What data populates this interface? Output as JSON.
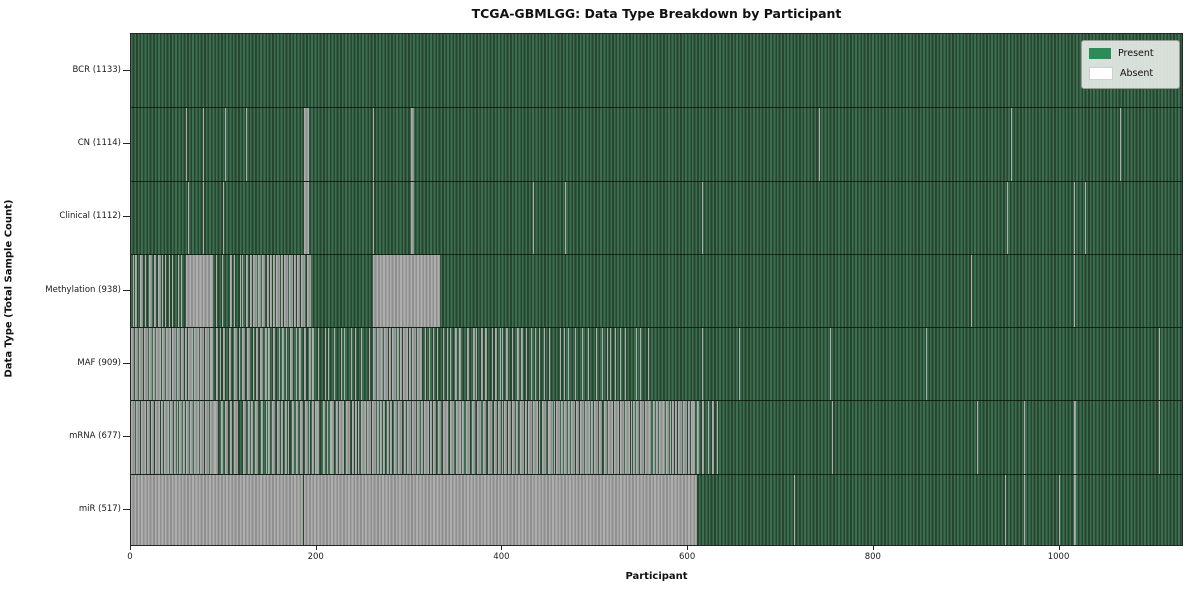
{
  "chart_data": {
    "type": "heatmap",
    "title": "TCGA-GBMLGG: Data Type Breakdown by Participant",
    "xlabel": "Participant",
    "ylabel": "Data Type (Total Sample Count)",
    "x_ticks": [
      0,
      200,
      400,
      600,
      800,
      1000
    ],
    "x_max": 1134,
    "n_participants": 1133,
    "grid": false,
    "legend_position": "upper right",
    "legend": [
      {
        "label": "Present",
        "color": "#2e8b57"
      },
      {
        "label": "Absent",
        "color": "#ffffff"
      }
    ],
    "colors": {
      "present_fill": "#2e8b57",
      "present_stripe_light": "#3c6e51",
      "present_stripe_dark": "#28462f",
      "absent_stripe_light": "#aeaeae",
      "absent_stripe_dark": "#8f8f8f"
    },
    "rows": [
      {
        "name": "BCR",
        "label": "BCR (1133)",
        "total": 1133,
        "absent": []
      },
      {
        "name": "CN",
        "label": "CN (1114)",
        "total": 1114,
        "absent": [
          [
            35,
            36
          ],
          [
            59,
            60
          ],
          [
            78,
            79
          ],
          [
            101,
            102
          ],
          [
            124,
            125
          ],
          [
            186,
            192
          ],
          [
            261,
            262
          ],
          [
            302,
            305
          ],
          [
            524,
            525
          ],
          [
            741,
            742
          ],
          [
            948,
            949
          ],
          [
            1065,
            1066
          ]
        ]
      },
      {
        "name": "Clinical",
        "label": "Clinical (1112)",
        "total": 1112,
        "absent": [
          [
            61,
            62
          ],
          [
            78,
            79
          ],
          [
            99,
            100
          ],
          [
            186,
            192
          ],
          [
            261,
            262
          ],
          [
            302,
            305
          ],
          [
            433,
            434
          ],
          [
            467,
            468
          ],
          [
            524,
            525
          ],
          [
            615,
            616
          ],
          [
            875,
            876
          ],
          [
            943,
            944
          ],
          [
            1016,
            1017
          ],
          [
            1027,
            1028
          ]
        ]
      },
      {
        "name": "Methylation",
        "label": "Methylation (938)",
        "total": 938,
        "absent": [
          {
            "range": [
              2,
              55
            ],
            "density": 0.5
          },
          [
            59,
            86
          ],
          {
            "range": [
              86,
              124
            ],
            "density": 0.26
          },
          {
            "range": [
              124,
              196
            ],
            "density": 0.66
          },
          [
            261,
            333
          ],
          [
            524,
            525
          ],
          [
            905,
            906
          ],
          [
            1016,
            1017
          ]
        ]
      },
      {
        "name": "MAF",
        "label": "MAF (909)",
        "total": 909,
        "absent": [
          {
            "range": [
              0,
              86
            ],
            "density": 0.8
          },
          {
            "range": [
              86,
              196
            ],
            "density": 0.42
          },
          {
            "range": [
              196,
              261
            ],
            "density": 0.06
          },
          {
            "range": [
              261,
              311
            ],
            "density": 0.85
          },
          {
            "range": [
              311,
              440
            ],
            "density": 0.3
          },
          {
            "range": [
              440,
              560
            ],
            "density": 0.15
          },
          [
            580,
            581
          ],
          [
            615,
            616
          ],
          [
            655,
            656
          ],
          [
            753,
            754
          ],
          [
            856,
            857
          ],
          [
            1042,
            1043
          ],
          [
            1107,
            1108
          ]
        ]
      },
      {
        "name": "mRNA",
        "label": "mRNA (677)",
        "total": 677,
        "absent": [
          {
            "range": [
              0,
              90
            ],
            "density": 0.78
          },
          {
            "range": [
              90,
              200
            ],
            "density": 0.6
          },
          {
            "range": [
              200,
              215
            ],
            "density": 0.25
          },
          {
            "range": [
              215,
              450
            ],
            "density": 0.72
          },
          {
            "range": [
              450,
              605
            ],
            "density": 0.79
          },
          {
            "range": [
              605,
              632
            ],
            "density": 0.35
          },
          [
            755,
            756
          ],
          [
            911,
            912
          ],
          [
            962,
            963
          ],
          [
            1016,
            1018
          ],
          [
            1107,
            1108
          ]
        ]
      },
      {
        "name": "miR",
        "label": "miR (517)",
        "total": 517,
        "absent": [
          [
            0,
            185
          ],
          [
            186,
            610
          ],
          [
            650,
            651
          ],
          [
            714,
            715
          ],
          [
            941,
            942
          ],
          [
            962,
            963
          ],
          [
            999,
            1000
          ],
          [
            1016,
            1018
          ],
          [
            1070,
            1071
          ]
        ]
      }
    ]
  }
}
